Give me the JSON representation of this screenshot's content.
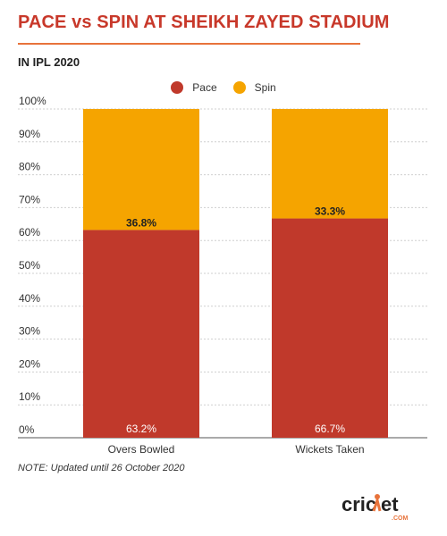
{
  "title": "PACE vs SPIN AT SHEIKH ZAYED STADIUM",
  "subtitle": "IN IPL 2020",
  "note": "NOTE: Updated until 26 October 2020",
  "logo_text": "cricket.com",
  "colors": {
    "pace": "#c0392b",
    "spin": "#f5a400",
    "title": "#c8382a",
    "rule": "#e8733b"
  },
  "chart_data": {
    "type": "bar",
    "stacked": true,
    "categories": [
      "Overs Bowled",
      "Wickets Taken"
    ],
    "series": [
      {
        "name": "Pace",
        "values": [
          63.2,
          66.7
        ],
        "labels": [
          "63.2%",
          "66.7%"
        ]
      },
      {
        "name": "Spin",
        "values": [
          36.8,
          33.3
        ],
        "labels": [
          "36.8%",
          "33.3%"
        ]
      }
    ],
    "ylim": [
      0,
      100
    ],
    "yticks": [
      "0%",
      "10%",
      "20%",
      "30%",
      "40%",
      "50%",
      "60%",
      "70%",
      "80%",
      "90%",
      "100%"
    ],
    "grid": true,
    "legend_position": "top-center"
  }
}
